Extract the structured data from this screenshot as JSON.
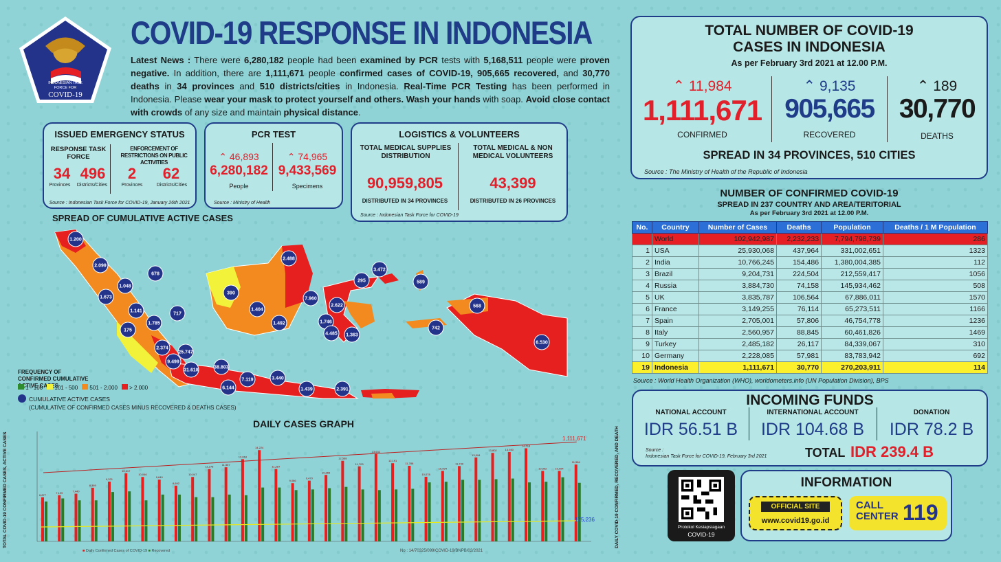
{
  "logo": {
    "line1": "INDONESIAN TASK",
    "line2": "FORCE FOR",
    "line3": "COVID-19"
  },
  "title": "COVID-19 RESPONSE IN INDONESIA",
  "news": {
    "p1": "Latest News :",
    "p2": " There were ",
    "p3": "6,280,182",
    "p4": " people had been ",
    "p5": "examined by PCR",
    "p6": " tests with ",
    "p7": "5,168,511",
    "p8": " people were ",
    "p9": "proven negative.",
    "p10": " In addition, there are ",
    "p11": "1,111,671",
    "p12": " people ",
    "p13": "confirmed cases of COVID-19,",
    "p14": " ",
    "p15": "905,665",
    "p16": " ",
    "p17": "recovered,",
    "p18": " and ",
    "p19": "30,770 deaths",
    "p20": " in ",
    "p21": "34 provinces",
    "p22": " and ",
    "p23": "510 districts/cities",
    "p24": " in Indonesia. ",
    "p25": "Real-Time PCR Testing",
    "p26": " has been performed in Indonesia. Please ",
    "p27": "wear your mask to protect yourself and others. Wash your hands",
    "p28": " with soap. ",
    "p29": "Avoid close contact with crowds",
    "p30": " of any size and maintain ",
    "p31": "physical distance",
    "p32": "."
  },
  "emergency": {
    "title": "ISSUED EMERGENCY STATUS",
    "col1": "RESPONSE TASK FORCE",
    "col2": "ENFORCEMENT OF RESTRICTIONS ON PUBLIC ACTIVITIES",
    "v1": "34",
    "l1": "Provinces",
    "v2": "496",
    "l2": "Districts/Cities",
    "v3": "2",
    "l3": "Provinces",
    "v4": "62",
    "l4": "Districts/Cities",
    "source": "Source : Indonesian Task Force for COVID-19, January 26th 2021"
  },
  "pcr": {
    "title": "PCR TEST",
    "inc1": "46,893",
    "v1": "6,280,182",
    "l1": "People",
    "inc2": "74,965",
    "v2": "9,433,569",
    "l2": "Specimens",
    "source": "Source : Ministry of Health"
  },
  "logistics": {
    "title": "LOGISTICS & VOLUNTEERS",
    "h1": "TOTAL MEDICAL SUPPLIES DISTRIBUTION",
    "v1": "90,959,805",
    "f1": "DISTRIBUTED IN 34 PROVINCES",
    "h2": "TOTAL MEDICAL & NON MEDICAL VOLUNTEERS",
    "v2": "43,399",
    "f2": "DISTRIBUTED IN 26 PROVINCES",
    "source": "Source : Indonesian Task Force for COVID-19"
  },
  "map": {
    "title": "SPREAD OF CUMULATIVE ACTIVE CASES",
    "legend_title": "FREQUENCY OF CONFIRMED CUMULATIVE ACTIVE CASES",
    "ranges": [
      "1 - 100",
      "101 - 500",
      "501 - 2.000",
      "> 2.000"
    ],
    "range_colors": [
      "#2e8b2e",
      "#f2f23a",
      "#f28a1f",
      "#e61f1f"
    ],
    "bubble_label": "CUMULATIVE ACTIVE CASES",
    "bubble_note": "(CUMULATIVE OF CONFIRMED CASES MINUS RECOVERED & DEATHS CASES)",
    "bubbles": [
      "1.200",
      "2.099",
      "678",
      "1.048",
      "1.673",
      "1.141",
      "717",
      "175",
      "1.785",
      "2.374",
      "9.499",
      "25.747",
      "31.618",
      "38.803",
      "6.144",
      "7.119",
      "3.440",
      "1.439",
      "2.391",
      "390",
      "1.404",
      "2.488",
      "7.960",
      "1.492",
      "2.622",
      "1.746",
      "4.485",
      "1.363",
      "295",
      "3.472",
      "589",
      "568",
      "742",
      "6.530"
    ]
  },
  "total": {
    "title1": "TOTAL NUMBER OF COVID-19",
    "title2": "CASES IN INDONESIA",
    "asof": "As per February 3rd 2021 at 12.00 P.M.",
    "inc_confirmed": "11,984",
    "confirmed": "1,111,671",
    "confirmed_label": "CONFIRMED",
    "inc_recovered": "9,135",
    "recovered": "905,665",
    "recovered_label": "RECOVERED",
    "inc_deaths": "189",
    "deaths": "30,770",
    "deaths_label": "DEATHS",
    "spread": "SPREAD IN 34 PROVINCES, 510 CITIES",
    "source": "Source : The Ministry of Health of the Republic of Indonesia"
  },
  "world": {
    "title1": "NUMBER OF CONFIRMED COVID-19",
    "title2": "SPREAD IN 237 COUNTRY AND AREA/TERITORIAL",
    "asof": "As per February 3rd 2021 at 12.00 P.M.",
    "headers": [
      "No.",
      "Country",
      "Number of Cases",
      "Deaths",
      "Population",
      "Deaths / 1 M Population"
    ],
    "rows": [
      [
        "",
        "World",
        "102,942,987",
        "2,232,233",
        "7,794,798,739",
        "286"
      ],
      [
        "1",
        "USA",
        "25,930,068",
        "437,964",
        "331,002,651",
        "1323"
      ],
      [
        "2",
        "India",
        "10,766,245",
        "154,486",
        "1,380,004,385",
        "112"
      ],
      [
        "3",
        "Brazil",
        "9,204,731",
        "224,504",
        "212,559,417",
        "1056"
      ],
      [
        "4",
        "Russia",
        "3,884,730",
        "74,158",
        "145,934,462",
        "508"
      ],
      [
        "5",
        "UK",
        "3,835,787",
        "106,564",
        "67,886,011",
        "1570"
      ],
      [
        "6",
        "France",
        "3,149,255",
        "76,114",
        "65,273,511",
        "1166"
      ],
      [
        "7",
        "Spain",
        "2,705,001",
        "57,806",
        "46,754,778",
        "1236"
      ],
      [
        "8",
        "Italy",
        "2,560,957",
        "88,845",
        "60,461,826",
        "1469"
      ],
      [
        "9",
        "Turkey",
        "2,485,182",
        "26,117",
        "84,339,067",
        "310"
      ],
      [
        "10",
        "Germany",
        "2,228,085",
        "57,981",
        "83,783,942",
        "692"
      ],
      [
        "19",
        "Indonesia",
        "1,111,671",
        "30,770",
        "270,203,911",
        "114"
      ]
    ],
    "source": "Source : World Health Organization (WHO), worldometers.info (UN Population Division), BPS"
  },
  "funds": {
    "title": "INCOMING FUNDS",
    "h1": "NATIONAL ACCOUNT",
    "v1": "IDR 56.51 B",
    "h2": "INTERNATIONAL ACCOUNT",
    "v2": "IDR 104.68 B",
    "h3": "DONATION",
    "v3": "IDR 78.2 B",
    "source1": "Source :",
    "source2": "Indonesian Task Force for COVID-19, February 3rd 2021",
    "total_label": "TOTAL",
    "total": "IDR 239.4 B"
  },
  "qr": {
    "line1": "Protokol Kesiapsiagaan",
    "line2": "COVID-19"
  },
  "info": {
    "title": "INFORMATION",
    "site_label": "OFFICIAL SITE",
    "site": "www.covid19.go.id",
    "call1": "CALL",
    "call2": "CENTER",
    "number": "119"
  },
  "daily": {
    "title": "DAILY CASES GRAPH",
    "ylabel_left": "TOTAL COVID-19 CONFIRMED CASES, ACTIVE CASES",
    "ylabel_right": "DAILY COVID-19 CONFIRMED, RECOVERED, AND DEATH",
    "last_total": "1,111,671",
    "last_active": "175,236"
  },
  "chart_data": {
    "type": "bar",
    "title": "DAILY CASES GRAPH",
    "series": [
      {
        "name": "Daily Confirmed Cases of COVID-19",
        "values": [
          6877,
          7199,
          7440,
          8369,
          9321,
          10617,
          10046,
          9640,
          8692,
          10047,
          11278,
          11557,
          12818,
          14224,
          11287,
          9086,
          9470,
          10365,
          12568,
          11703,
          13632,
          12191,
          11788,
          10078,
          10994,
          11749,
          13094,
          13802,
          13930,
          14518,
          10992,
          10994,
          11984
        ]
      },
      {
        "name": "Recovered",
        "values": [
          6220,
          6700,
          6400,
          6400,
          7700,
          7800,
          6400,
          7300,
          7300,
          6900,
          6900,
          7300,
          7200,
          8400,
          8400,
          8000,
          8100,
          8300,
          8500,
          8100,
          8000,
          8100,
          8200,
          9200,
          9300,
          9600,
          9600,
          9700,
          9800,
          9200,
          9300,
          10000,
          9135
        ]
      }
    ],
    "note": "No : 14/70325/099/COVID-19/BNPB/02/2021"
  },
  "colors": {
    "navy": "#1f3c88",
    "red": "#e0202a",
    "panel": "#b7e6e6",
    "bg": "#8fd3d6"
  }
}
